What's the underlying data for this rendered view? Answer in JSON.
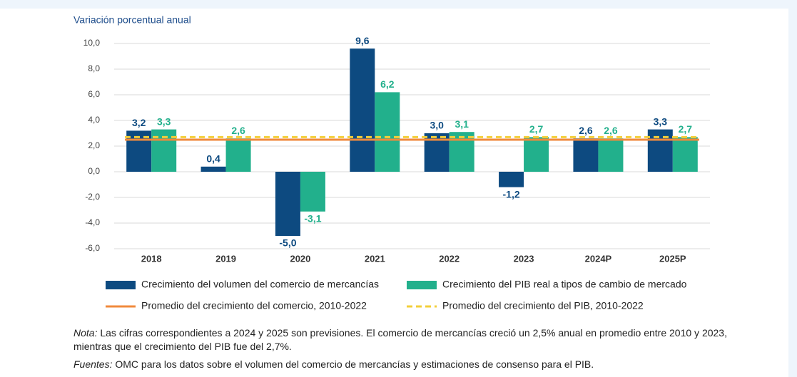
{
  "chart_data": {
    "type": "bar",
    "y_axis_label": "Variación porcentual anual",
    "categories": [
      "2018",
      "2019",
      "2020",
      "2021",
      "2022",
      "2023",
      "2024P",
      "2025P"
    ],
    "series": [
      {
        "name": "Crecimiento del volumen del comercio de mercancías",
        "color": "#0d4a80",
        "values": [
          3.2,
          0.4,
          -5.0,
          9.6,
          3.0,
          -1.2,
          2.6,
          3.3
        ],
        "value_labels": [
          "3,2",
          "0,4",
          "-5,0",
          "9,6",
          "3,0",
          "-1,2",
          "2,6",
          "3,3"
        ]
      },
      {
        "name": "Crecimiento del PIB real a tipos de cambio de mercado",
        "color": "#22b08c",
        "values": [
          3.3,
          2.6,
          -3.1,
          6.2,
          3.1,
          2.7,
          2.6,
          2.7
        ],
        "value_labels": [
          "3,3",
          "2,6",
          "-3,1",
          "6,2",
          "3,1",
          "2,7",
          "2,6",
          "2,7"
        ]
      }
    ],
    "reference_lines": [
      {
        "name": "Promedio del crecimiento del comercio, 2010-2022",
        "color": "#f08a3c",
        "value": 2.5,
        "style": "solid"
      },
      {
        "name": "Promedio del crecimiento del PIB, 2010-2022",
        "color": "#f3cf3a",
        "value": 2.7,
        "style": "dashed"
      }
    ],
    "ylim": [
      -6,
      10
    ],
    "yticks": [
      {
        "value": 10,
        "label": "10,0"
      },
      {
        "value": 8,
        "label": "8,0"
      },
      {
        "value": 6,
        "label": "6,0"
      },
      {
        "value": 4,
        "label": "4,0"
      },
      {
        "value": 2,
        "label": "2,0"
      },
      {
        "value": 0,
        "label": "0,0"
      },
      {
        "value": -2,
        "label": "-2,0"
      },
      {
        "value": -4,
        "label": "-4,0"
      },
      {
        "value": -6,
        "label": "-6,0"
      }
    ],
    "grid": true,
    "notes": [
      {
        "label": "Nota:",
        "text": " Las cifras correspondientes a 2024 y 2025 son previsiones. El comercio de mercancías creció un 2,5% anual en promedio entre 2010 y 2023, mientras que el crecimiento del PIB fue del 2,7%."
      },
      {
        "label": "Fuentes:",
        "text": " OMC para los datos sobre el volumen del comercio de mercancías y estimaciones de consenso para el PIB."
      }
    ]
  }
}
